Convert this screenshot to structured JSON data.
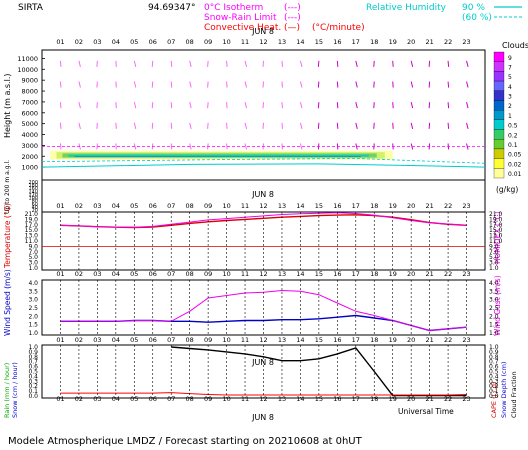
{
  "header": {
    "site": "SIRTA",
    "coords": "94.69347°",
    "legend_left": [
      {
        "label": "0°C Isotherm",
        "sample": "(---)",
        "color": "#ff00ff"
      },
      {
        "label": "Snow-Rain Limit",
        "sample": "(---)",
        "color": "#ff00ff"
      },
      {
        "label": "Convective Heat.",
        "sample": "(—)",
        "unit": "(°C/minute)",
        "color": "#ff0000"
      }
    ],
    "legend_right": [
      {
        "label": "Relative Humidity",
        "value": "90 %",
        "color": "#00dddd"
      },
      {
        "value": "(60 %)",
        "color": "#00dddd"
      }
    ]
  },
  "date_label": "JUN  8",
  "colors": {
    "grid": "#000000",
    "temp": "#dd0000",
    "humidex": "#ee00ee",
    "wind": "#0000cc",
    "gust": "#ee00ee",
    "rain": "#ff0000",
    "cloud": "#000000",
    "rh90": "#00cccc"
  },
  "hour_labels": [
    "01",
    "02",
    "03",
    "04",
    "05",
    "06",
    "07",
    "08",
    "09",
    "10",
    "11",
    "12",
    "13",
    "14",
    "15",
    "16",
    "17",
    "18",
    "19",
    "20",
    "21",
    "22",
    "23"
  ],
  "chart_data": [
    {
      "type": "heatmap",
      "panel": "clouds",
      "ylabel": "Height (m a.s.l.)",
      "ytick_labels": [
        "11000",
        "10000",
        "9000",
        "8000",
        "7000",
        "6000",
        "5000",
        "4000",
        "3000",
        "2000",
        "1000"
      ],
      "ytick_values": [
        11000,
        10000,
        9000,
        8000,
        7000,
        6000,
        5000,
        4000,
        3000,
        2000,
        1000
      ],
      "colorbar_title": "Clouds",
      "colorbar_ticks": [
        "9",
        "7",
        "5",
        "4",
        "3",
        "2",
        "1",
        "0.5",
        "0.2",
        "0.1",
        "0.05",
        "0.02",
        "0.01"
      ],
      "colorbar_colors": [
        "#ff00ff",
        "#cc33ff",
        "#9933ff",
        "#6666ff",
        "#3333cc",
        "#0066cc",
        "#0099cc",
        "#00cccc",
        "#33cc66",
        "#66cc33",
        "#cccc00",
        "#ffff33",
        "#ffff99"
      ],
      "colorbar_unit": "(g/kg)",
      "isotherm_height": 2900,
      "cloud_band": {
        "from_hour": 1,
        "to_hour": 19,
        "base": 1700,
        "top": 2500
      },
      "rh90_line_height": 1000
    },
    {
      "type": "line",
      "panel": "surface-layer",
      "ylabel": "Up to 200 m a.g.l.",
      "ytick_labels": [
        "200",
        "180",
        "160",
        "140",
        "120",
        "100",
        "80",
        "60",
        "40",
        "20"
      ]
    },
    {
      "type": "line",
      "panel": "temperature",
      "ylabel": "Temperature (°C)",
      "ylabel_right": "HUMIDEX (°C)",
      "ytick_labels": [
        "21.0",
        "19.0",
        "17.0",
        "15.0",
        "13.0",
        "11.0",
        "9.0",
        "7.0",
        "5.0",
        "3.0",
        "1.0"
      ],
      "ylim": [
        1,
        21
      ],
      "x": [
        1,
        2,
        3,
        4,
        5,
        6,
        7,
        8,
        9,
        10,
        11,
        12,
        13,
        14,
        15,
        16,
        17,
        18,
        19,
        20,
        21,
        22,
        23
      ],
      "series": [
        {
          "name": "Temperature",
          "values": [
            16.8,
            16.6,
            16.3,
            16.1,
            16.0,
            16.2,
            16.8,
            17.5,
            18.1,
            18.6,
            19.0,
            19.4,
            19.8,
            20.1,
            20.4,
            20.6,
            20.7,
            20.4,
            19.8,
            18.9,
            17.8,
            17.2,
            16.8
          ]
        },
        {
          "name": "HUMIDEX",
          "values": [
            16.8,
            16.6,
            16.3,
            16.2,
            16.1,
            16.4,
            17.2,
            18.0,
            18.8,
            19.3,
            19.8,
            20.3,
            20.8,
            21.1,
            21.3,
            21.5,
            21.2,
            20.6,
            19.6,
            18.6,
            17.7,
            17.3,
            16.9
          ]
        }
      ]
    },
    {
      "type": "line",
      "panel": "wind",
      "ylabel": "Wind Speed (m/s)",
      "ylabel_right": "Wind Gust (m/s)",
      "ytick_labels": [
        "4.0",
        "3.5",
        "3.0",
        "2.5",
        "2.0",
        "1.5",
        "1.0"
      ],
      "ylim": [
        1,
        4
      ],
      "x": [
        1,
        2,
        3,
        4,
        5,
        6,
        7,
        8,
        9,
        10,
        11,
        12,
        13,
        14,
        15,
        16,
        17,
        18,
        19,
        20,
        21,
        22,
        23
      ],
      "series": [
        {
          "name": "Wind Speed",
          "values": [
            1.7,
            1.7,
            1.7,
            1.7,
            1.75,
            1.75,
            1.7,
            1.7,
            1.65,
            1.7,
            1.75,
            1.75,
            1.8,
            1.8,
            1.85,
            1.95,
            2.05,
            1.9,
            1.75,
            1.45,
            1.15,
            1.25,
            1.35
          ]
        },
        {
          "name": "Wind Gust",
          "values": [
            1.7,
            1.7,
            1.7,
            1.7,
            1.75,
            1.75,
            1.7,
            2.3,
            3.1,
            3.25,
            3.4,
            3.45,
            3.55,
            3.5,
            3.3,
            2.8,
            2.3,
            2.05,
            1.75,
            1.45,
            1.15,
            1.25,
            1.35
          ]
        }
      ]
    },
    {
      "type": "line",
      "panel": "rain-cloud",
      "ylabel_left": [
        "Rain (mm / hour)",
        "Snow (cm / hour)"
      ],
      "ylabel_right": [
        "CAPE (J / g)",
        "Snow Depth (cm)",
        "Cloud Fraction"
      ],
      "ytick_labels": [
        "1.0",
        "0.9",
        "0.8",
        "0.7",
        "0.6",
        "0.5",
        "0.4",
        "0.3",
        "0.2",
        "0.1",
        "0.0"
      ],
      "ylim": [
        0,
        1
      ],
      "x": [
        1,
        2,
        3,
        4,
        5,
        6,
        7,
        8,
        9,
        10,
        11,
        12,
        13,
        14,
        15,
        16,
        17,
        18,
        19,
        20,
        21,
        22,
        23
      ],
      "series": [
        {
          "name": "Cloud Fraction",
          "values": [
            null,
            null,
            null,
            null,
            null,
            null,
            1.0,
            0.97,
            0.94,
            0.9,
            0.86,
            0.8,
            0.72,
            0.72,
            0.76,
            0.86,
            0.98,
            0.5,
            0.01,
            0.01,
            0.01,
            0.01,
            0.01
          ]
        },
        {
          "name": "Rain",
          "values": [
            0.06,
            0.06,
            0.06,
            0.06,
            0.06,
            0.06,
            0.07,
            0.05,
            0.03,
            0.02,
            0.02,
            0.02,
            0.02,
            0.02,
            0.02,
            0.02,
            0.02,
            0.02,
            0.02,
            0.02,
            0.02,
            0.02,
            0.03
          ]
        }
      ]
    }
  ],
  "xlabel": "Universal Time",
  "footer": "Modele Atmospherique LMDZ / Forecast starting on 20210608 at 0hUT"
}
